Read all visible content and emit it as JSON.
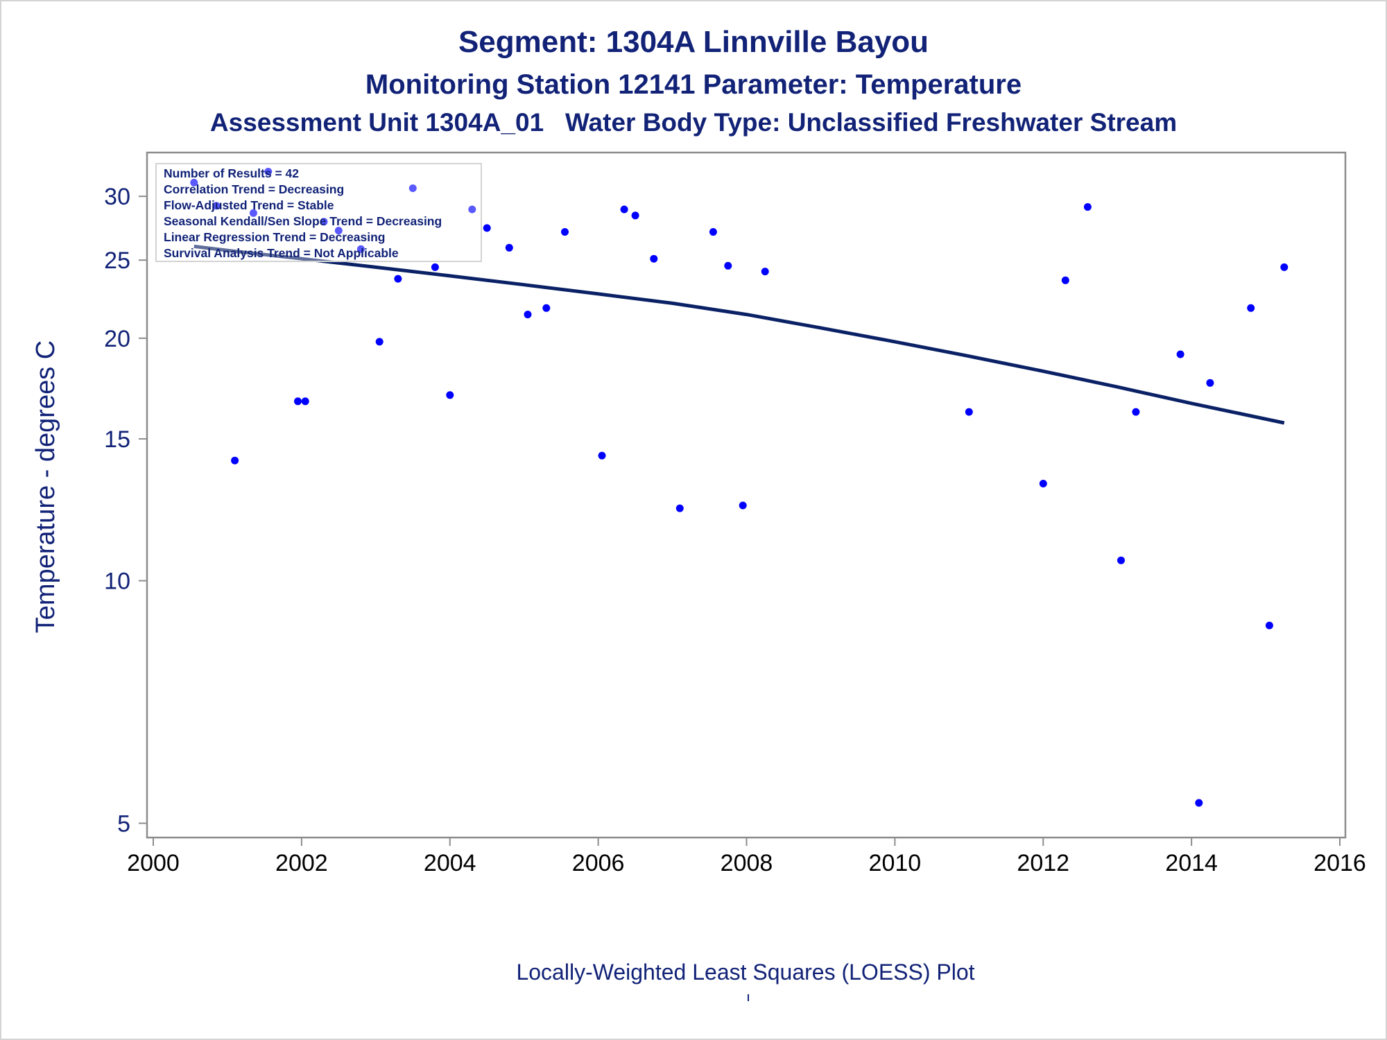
{
  "header": {
    "title": "Segment: 1304A  Linnville Bayou",
    "subtitle": "Monitoring Station 12141 Parameter: Temperature",
    "subtitle2": "Assessment Unit 1304A_01   Water Body Type: Unclassified Freshwater Stream"
  },
  "inset": {
    "lines": [
      "Number of Results = 42",
      "Correlation Trend = Decreasing",
      "Flow-Adjusted Trend = Stable",
      "Seasonal Kendall/Sen Slope Trend = Decreasing",
      "Linear Regression Trend = Decreasing",
      "Survival Analysis Trend = Not Applicable"
    ]
  },
  "colors": {
    "text": "#112277",
    "points": "#0000ff",
    "loess_line": "#0a2166",
    "axis": "#8c8c8c",
    "frame": "#d3d3d3"
  },
  "chart_data": {
    "type": "scatter",
    "xlabel": "",
    "ylabel": "Temperature - degrees C",
    "footnote": "Locally-Weighted Least Squares (LOESS) Plot",
    "x_scale": "linear",
    "y_scale": "log",
    "xlim": [
      2000,
      2016
    ],
    "ylim": [
      4.8,
      34
    ],
    "x_ticks": [
      2000,
      2002,
      2004,
      2006,
      2008,
      2010,
      2012,
      2014,
      2016
    ],
    "y_ticks": [
      5,
      10,
      15,
      20,
      25,
      30
    ],
    "grid": false,
    "legend": "none",
    "series": [
      {
        "kind": "points",
        "x": [
          2000.55,
          2000.85,
          2001.1,
          2001.35,
          2001.55,
          2001.95,
          2002.05,
          2002.3,
          2002.5,
          2002.8,
          2003.05,
          2003.3,
          2003.5,
          2003.8,
          2004.0,
          2004.3,
          2004.5,
          2004.8,
          2005.05,
          2005.3,
          2005.55,
          2006.05,
          2006.35,
          2006.5,
          2006.75,
          2007.1,
          2007.55,
          2007.75,
          2007.95,
          2008.25,
          2011.0,
          2012.0,
          2012.3,
          2012.6,
          2013.05,
          2013.25,
          2013.85,
          2014.1,
          2014.25,
          2014.8,
          2015.05,
          2015.25
        ],
        "y": [
          31.2,
          29.2,
          14.1,
          28.6,
          32.2,
          16.7,
          16.7,
          27.9,
          27.2,
          25.8,
          19.8,
          23.7,
          30.7,
          24.5,
          17.0,
          28.9,
          27.4,
          25.9,
          21.4,
          21.8,
          27.1,
          14.3,
          28.9,
          28.4,
          25.1,
          12.3,
          27.1,
          24.6,
          12.4,
          24.2,
          16.2,
          13.2,
          23.6,
          29.1,
          10.6,
          16.2,
          19.1,
          5.3,
          17.6,
          21.8,
          8.8,
          24.5
        ]
      },
      {
        "kind": "line",
        "x": [
          2000.55,
          2001.0,
          2002.0,
          2003.0,
          2004.0,
          2005.0,
          2006.0,
          2007.0,
          2008.0,
          2009.0,
          2010.0,
          2011.0,
          2012.0,
          2013.0,
          2014.0,
          2015.25
        ],
        "y": [
          26.0,
          25.7,
          25.1,
          24.5,
          23.9,
          23.3,
          22.7,
          22.1,
          21.4,
          20.6,
          19.8,
          19.0,
          18.2,
          17.4,
          16.6,
          15.7
        ]
      }
    ]
  }
}
